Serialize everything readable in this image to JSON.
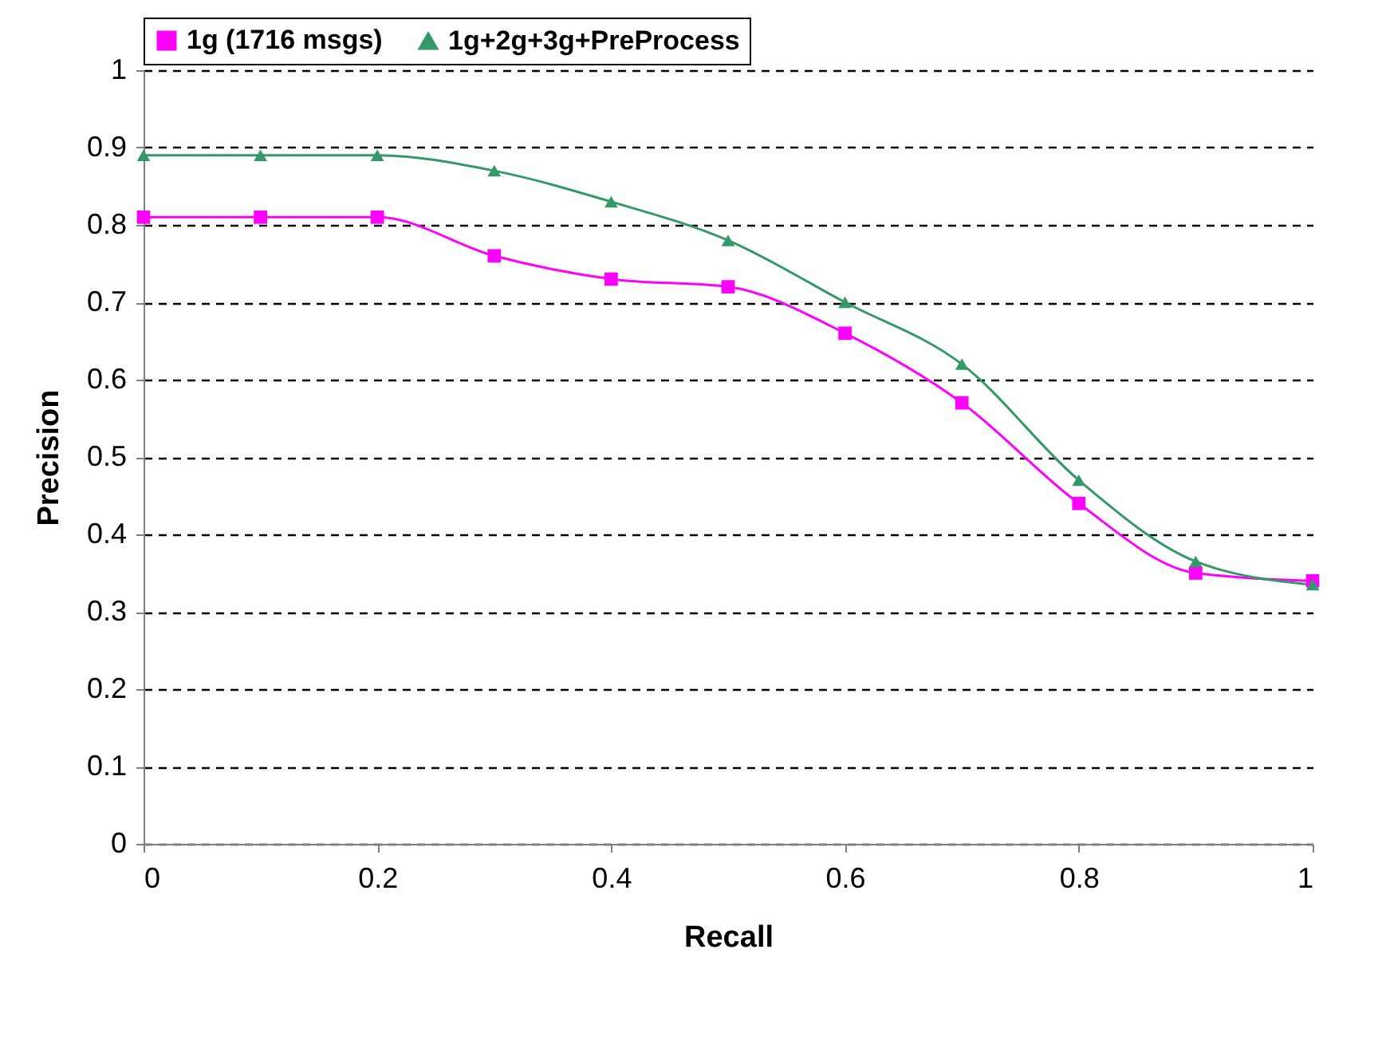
{
  "chart_data": {
    "type": "line",
    "xlabel": "Recall",
    "ylabel": "Precision",
    "x": [
      0,
      0.1,
      0.2,
      0.3,
      0.4,
      0.5,
      0.6,
      0.7,
      0.8,
      0.9,
      1
    ],
    "series": [
      {
        "name": "1g (1716 msgs)",
        "color": "#ff00ff",
        "marker": "square",
        "values": [
          0.81,
          0.81,
          0.81,
          0.76,
          0.73,
          0.72,
          0.66,
          0.57,
          0.44,
          0.35,
          0.34
        ]
      },
      {
        "name": "1g+2g+3g+PreProcess",
        "color": "#339966",
        "marker": "triangle",
        "values": [
          0.89,
          0.89,
          0.89,
          0.87,
          0.83,
          0.78,
          0.7,
          0.62,
          0.47,
          0.365,
          0.335
        ]
      }
    ],
    "xlim": [
      0,
      1
    ],
    "xticks": [
      0,
      0.2,
      0.4,
      0.6,
      0.8,
      1
    ],
    "ylim": [
      0,
      1
    ],
    "yticks": [
      0,
      0.1,
      0.2,
      0.3,
      0.4,
      0.5,
      0.6,
      0.7,
      0.8,
      0.9,
      1
    ],
    "grid": "y",
    "legend": "top",
    "line_style": "solid"
  }
}
